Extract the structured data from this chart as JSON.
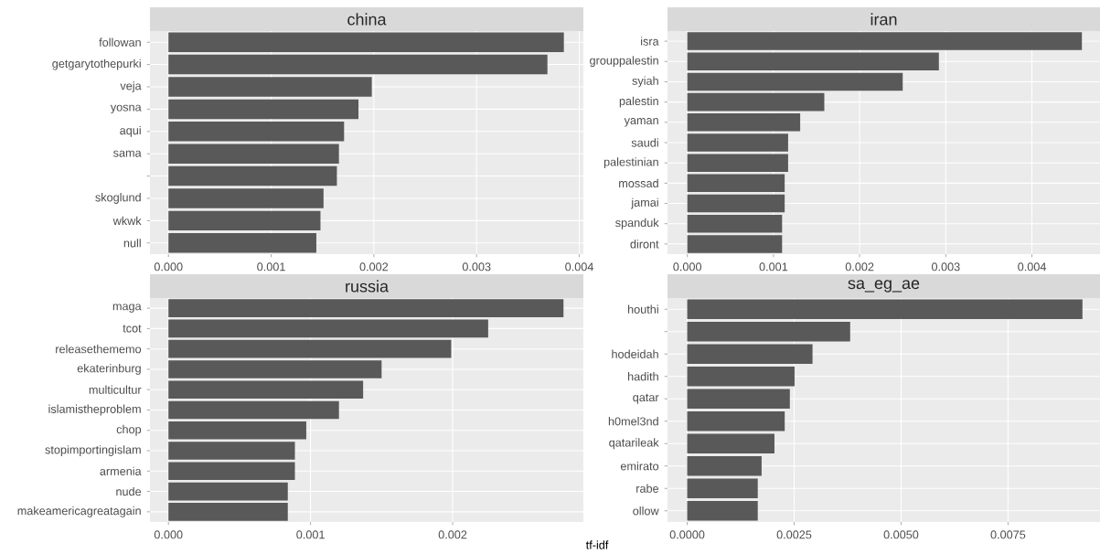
{
  "chart_data": [
    {
      "type": "bar",
      "orientation": "horizontal",
      "title": "china",
      "categories": [
        "followan",
        "getgarytothepurki",
        "veja",
        "yosna",
        "aqui",
        "sama",
        null,
        "skoglund",
        "wkwk",
        "null"
      ],
      "values": [
        0.00385,
        0.00369,
        0.00198,
        0.00185,
        0.00171,
        0.00166,
        0.00164,
        0.00151,
        0.00148,
        0.00144
      ],
      "color": "#595959",
      "xlim": [
        -0.00018,
        0.00404
      ],
      "xticks": [
        {
          "value": 0,
          "label": "0.000"
        },
        0.001,
        0.002,
        0.003,
        0.004
      ],
      "grid": true
    },
    {
      "type": "bar",
      "orientation": "horizontal",
      "title": "iran",
      "categories": [
        "isra",
        "grouppalestin",
        "syiah",
        "palestin",
        "yaman",
        "saudi",
        "palestinian",
        "mossad",
        "jamai",
        "spanduk",
        "diront"
      ],
      "values": [
        0.00458,
        0.00292,
        0.0025,
        0.00159,
        0.00131,
        0.00117,
        0.00117,
        0.00113,
        0.00113,
        0.0011,
        0.0011
      ],
      "color": "#595959",
      "xlim": [
        -0.00023,
        0.00479
      ],
      "xticks": [
        {
          "value": 0,
          "label": "0.000"
        },
        0.001,
        0.002,
        0.003,
        0.004
      ],
      "grid": true
    },
    {
      "type": "bar",
      "orientation": "horizontal",
      "title": "russia",
      "categories": [
        "maga",
        "tcot",
        "releasethememo",
        "ekaterinburg",
        "multicultur",
        "islamistheproblem",
        "chop",
        "stopimportingislam",
        "armenia",
        "nude",
        "makeamericagreatagain"
      ],
      "values": [
        0.00278,
        0.00225,
        0.00199,
        0.0015,
        0.00137,
        0.0012,
        0.00097,
        0.00089,
        0.00089,
        0.00084,
        0.00084
      ],
      "color": "#595959",
      "xlim": [
        -0.00013,
        0.00292
      ],
      "xticks": [
        {
          "value": 0,
          "label": "0.000"
        },
        0.001,
        0.002
      ],
      "grid": true
    },
    {
      "type": "bar",
      "orientation": "horizontal",
      "title": "sa_eg_ae",
      "xlabel": "tf-idf",
      "categories": [
        "houthi",
        null,
        "hodeidah",
        "hadith",
        "qatar",
        "h0mel3nd",
        "qatarileak",
        "emirato",
        "rabe",
        "ollow"
      ],
      "values": [
        0.00924,
        0.00381,
        0.00293,
        0.00251,
        0.0024,
        0.00228,
        0.00204,
        0.00174,
        0.00165,
        0.00165
      ],
      "color": "#595959",
      "xlim": [
        -0.00046,
        0.00965
      ],
      "xticks": [
        {
          "value": 0,
          "label": "0.0000"
        },
        {
          "value": 0.0025,
          "label": "0.0025"
        },
        {
          "value": 0.005,
          "label": "0.0050"
        },
        0.0075
      ],
      "grid": true
    }
  ]
}
